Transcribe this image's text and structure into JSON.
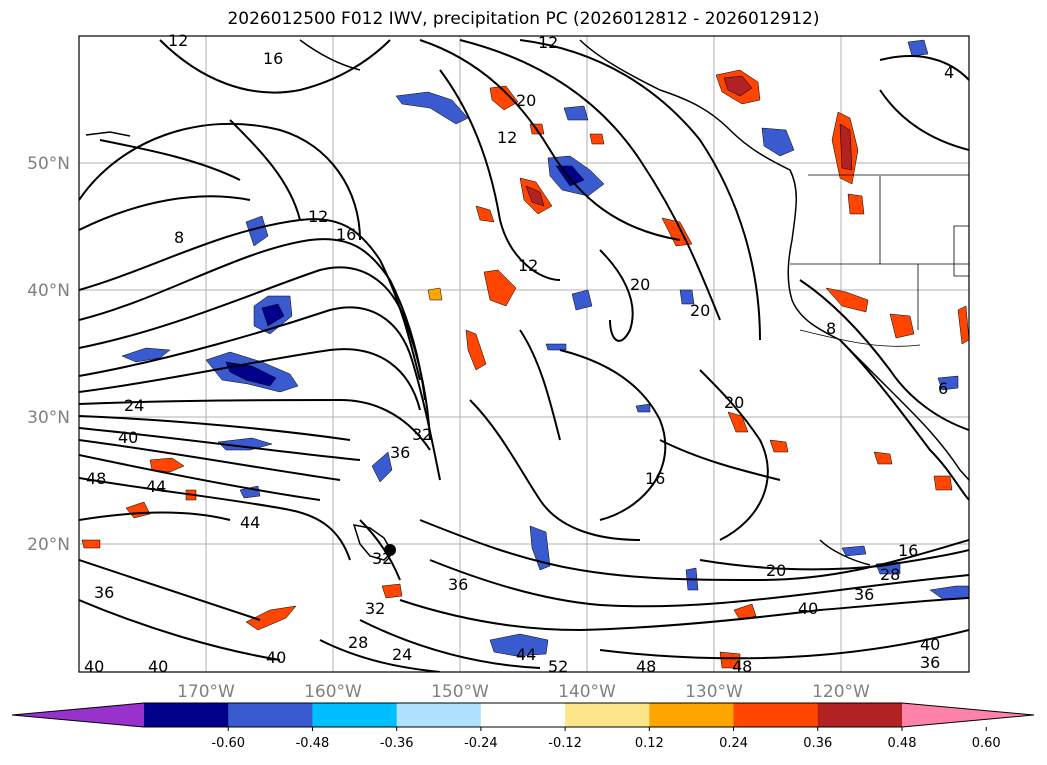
{
  "title": "2026012500 F012 IWV, precipitation PC (2026012812 - 2026012912)",
  "lon_labels": [
    "170°W",
    "160°W",
    "150°W",
    "140°W",
    "130°W",
    "120°W"
  ],
  "lat_labels": [
    "50°N",
    "40°N",
    "30°N",
    "20°N"
  ],
  "contour_labels": [
    "12",
    "16",
    "12",
    "20",
    "12",
    "12",
    "16",
    "8",
    "12",
    "20",
    "20",
    "24",
    "40",
    "48",
    "44",
    "36",
    "32",
    "44",
    "32",
    "36",
    "32",
    "28",
    "24",
    "40",
    "40",
    "40",
    "36",
    "20",
    "16",
    "16",
    "20",
    "28",
    "36",
    "40",
    "44",
    "52",
    "48",
    "48",
    "36",
    "40",
    "4",
    "6",
    "8"
  ],
  "colorbar": {
    "ticks": [
      "-0.60",
      "-0.48",
      "-0.36",
      "-0.24",
      "-0.12",
      "0.12",
      "0.24",
      "0.36",
      "0.48",
      "0.60"
    ],
    "colors": [
      "#9932cc",
      "#00008b",
      "#3a5bd0",
      "#00bfff",
      "#b0e2ff",
      "#ffffff",
      "#fde68a",
      "#ffa500",
      "#ff4500",
      "#b22222",
      "#ff82ab"
    ]
  },
  "colors": {
    "grid": "#b0b0b0",
    "axis_label": "#808080",
    "coast": "#000000"
  }
}
